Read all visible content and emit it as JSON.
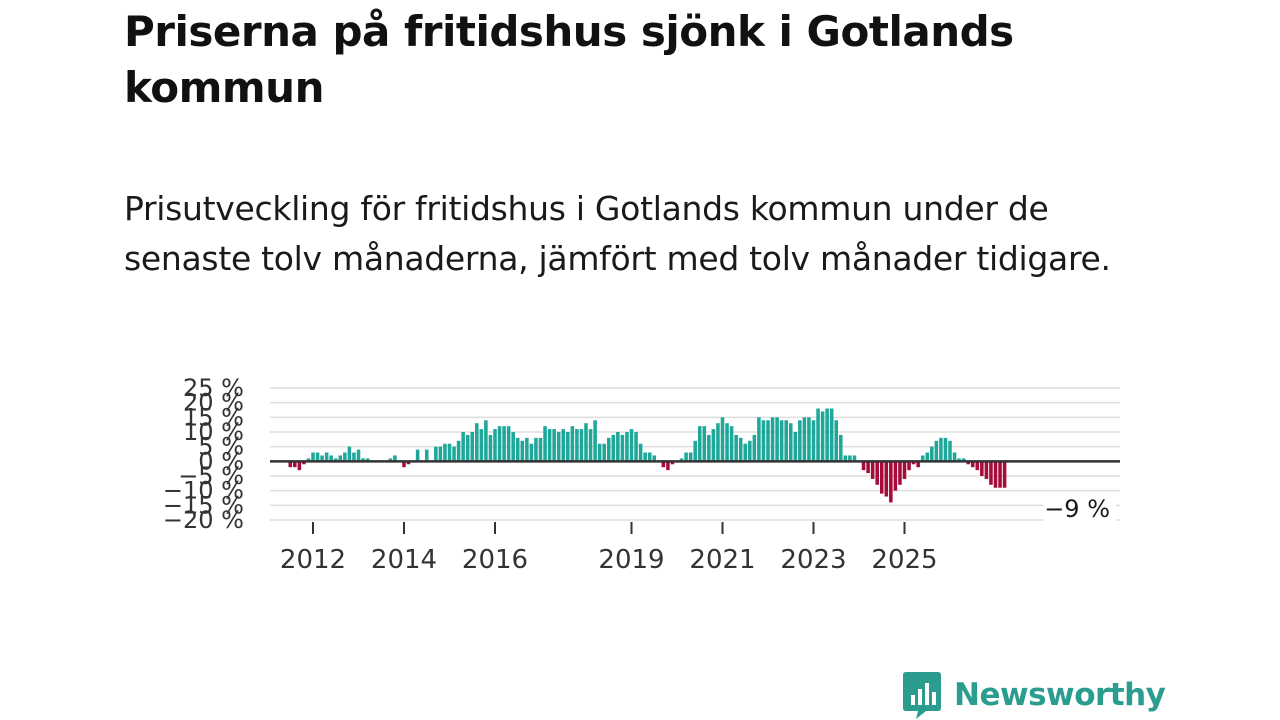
{
  "title": "Priserna på fritidshus sjönk i Gotlands kommun",
  "subtitle": "Prisutveckling för fritidshus i Gotlands kommun under de senaste tolv månaderna, jämfört med tolv månader tidigare.",
  "brand": {
    "name": "Newsworthy",
    "color": "#2a9d8f"
  },
  "colors": {
    "positive": "#1fa89a",
    "negative": "#a50c3a",
    "zero_line": "#333333",
    "grid": "#dddddd"
  },
  "chart_data": {
    "type": "bar",
    "title": "",
    "xlabel": "",
    "ylabel": "",
    "ylim": [
      -20,
      25
    ],
    "y_ticks": [
      25,
      20,
      15,
      10,
      5,
      0,
      -5,
      -10,
      -15,
      -20
    ],
    "y_tick_labels": [
      "25 %",
      "20 %",
      "15 %",
      "10 %",
      "5 %",
      "0 %",
      "−5 %",
      "−10 %",
      "−15 %",
      "−20 %"
    ],
    "x_tick_labels": [
      "2012",
      "2014",
      "2016",
      "2019",
      "2021",
      "2023",
      "2025"
    ],
    "x_tick_index": [
      5,
      25,
      45,
      75,
      95,
      115,
      135
    ],
    "last_value_label": "−9 %",
    "values": [
      -2,
      -2,
      -3,
      -1,
      1,
      3,
      3,
      2,
      3,
      2,
      1,
      2,
      3,
      5,
      3,
      4,
      1,
      1,
      0,
      0,
      0,
      0,
      1,
      2,
      0,
      -2,
      -1,
      0,
      4,
      0,
      4,
      0,
      5,
      5,
      6,
      6,
      5,
      7,
      10,
      9,
      10,
      13,
      11,
      14,
      9,
      11,
      12,
      12,
      12,
      10,
      8,
      7,
      8,
      6,
      8,
      8,
      12,
      11,
      11,
      10,
      11,
      10,
      12,
      11,
      11,
      13,
      11,
      14,
      6,
      6,
      8,
      9,
      10,
      9,
      10,
      11,
      10,
      6,
      3,
      3,
      2,
      0,
      -2,
      -3,
      -1,
      0,
      1,
      3,
      3,
      7,
      12,
      12,
      9,
      11,
      13,
      15,
      13,
      12,
      9,
      8,
      6,
      7,
      9,
      15,
      14,
      14,
      15,
      15,
      14,
      14,
      13,
      10,
      14,
      15,
      15,
      14,
      18,
      17,
      18,
      18,
      14,
      9,
      2,
      2,
      2,
      0,
      -3,
      -4,
      -6,
      -8,
      -11,
      -12,
      -14,
      -10,
      -8,
      -6,
      -3,
      -1,
      -2,
      2,
      3,
      5,
      7,
      8,
      8,
      7,
      3,
      1,
      1,
      -1,
      -2,
      -3,
      -5,
      -6,
      -8,
      -9,
      -9,
      -9
    ]
  }
}
